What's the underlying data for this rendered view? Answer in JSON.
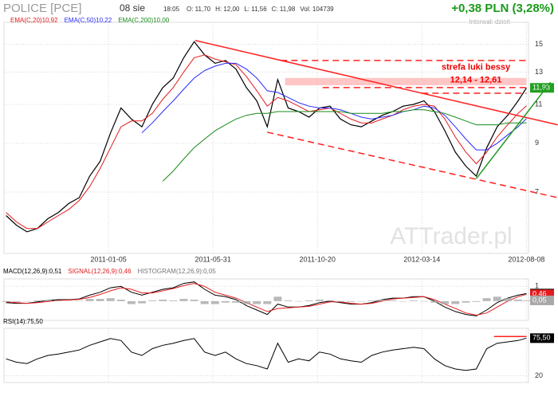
{
  "header": {
    "title": "POLICE [PCE]",
    "date": "08 sie",
    "time": "18:05",
    "fields": [
      "O: 11,70",
      "H: 12,00",
      "L: 11,56",
      "C: 11,98",
      "Vol: 104739"
    ],
    "change": "+0,38 PLN (3,28%)",
    "interval": "Interwał: dzień"
  },
  "watermark": "ATTrader.pl",
  "chart_data": [
    {
      "type": "line",
      "log_scale": true,
      "grid": true,
      "x": [
        0,
        10,
        20,
        30,
        40,
        50,
        60,
        70,
        80,
        90,
        100,
        110,
        120,
        130,
        140,
        150,
        160,
        170,
        180,
        190,
        200,
        210,
        220,
        230,
        240,
        250,
        260,
        270,
        280,
        290,
        300,
        310,
        320,
        330,
        340,
        350,
        360,
        370,
        380,
        390,
        400,
        410,
        420,
        430,
        440,
        450,
        460,
        470,
        480,
        490,
        498
      ],
      "xlim": [
        -2,
        500
      ],
      "xticks": [
        {
          "value": 98,
          "label": "2011-01-05"
        },
        {
          "value": 198,
          "label": "2011-05-31"
        },
        {
          "value": 298,
          "label": "2011-10-20"
        },
        {
          "value": 398,
          "label": "2012-03-14"
        },
        {
          "value": 498,
          "label": "2012-08-08"
        }
      ],
      "ylim": [
        5.1,
        16.8
      ],
      "yticks": [
        7,
        9,
        11,
        13,
        15
      ],
      "series": [
        {
          "color": "#000000",
          "values": [
            6.2,
            5.9,
            5.7,
            5.8,
            6.1,
            6.3,
            6.6,
            6.8,
            7.6,
            8.2,
            9.5,
            10.8,
            10.2,
            9.8,
            11.0,
            12.0,
            12.6,
            14.0,
            15.2,
            14.2,
            13.6,
            13.8,
            13.2,
            12.0,
            11.2,
            9.8,
            12.5,
            10.8,
            10.6,
            10.3,
            10.8,
            10.9,
            10.2,
            9.9,
            9.8,
            10.1,
            10.4,
            10.6,
            10.9,
            11.0,
            11.2,
            10.6,
            9.6,
            8.6,
            8.0,
            7.6,
            8.8,
            9.8,
            10.4,
            11.2,
            11.98
          ],
          "last_value_label": "11,98"
        },
        {
          "name": "EMA(C,20)",
          "legend_label": "10,92",
          "color": "#e41a1c",
          "values": [
            6.3,
            6.0,
            5.8,
            5.8,
            6.0,
            6.2,
            6.4,
            6.7,
            7.2,
            7.9,
            8.8,
            9.8,
            10.1,
            10.1,
            10.5,
            11.3,
            12.0,
            13.0,
            14.0,
            14.2,
            13.9,
            13.7,
            13.5,
            12.7,
            11.8,
            10.9,
            11.4,
            11.2,
            10.9,
            10.6,
            10.7,
            10.8,
            10.5,
            10.2,
            10.0,
            10.0,
            10.2,
            10.4,
            10.7,
            10.9,
            11.0,
            10.9,
            10.2,
            9.3,
            8.6,
            8.1,
            8.6,
            9.3,
            9.9,
            10.5,
            10.92
          ]
        },
        {
          "name": "EMA(C,50)",
          "legend_label": "10,22",
          "color": "#2a2aff",
          "values": [
            null,
            null,
            null,
            null,
            null,
            null,
            null,
            null,
            null,
            null,
            null,
            null,
            null,
            9.5,
            10.0,
            10.6,
            11.2,
            11.9,
            12.6,
            13.1,
            13.4,
            13.6,
            13.6,
            13.2,
            12.6,
            11.8,
            11.7,
            11.4,
            11.1,
            10.9,
            10.8,
            10.8,
            10.7,
            10.5,
            10.3,
            10.2,
            10.3,
            10.4,
            10.6,
            10.7,
            10.9,
            10.8,
            10.4,
            9.8,
            9.2,
            8.7,
            8.7,
            9.0,
            9.4,
            9.8,
            10.22
          ]
        },
        {
          "name": "EMA(C,200)",
          "legend_label": "10,00",
          "color": "#1a8a1a",
          "values": [
            null,
            null,
            null,
            null,
            null,
            null,
            null,
            null,
            null,
            null,
            null,
            null,
            null,
            null,
            null,
            7.4,
            7.8,
            8.3,
            8.8,
            9.2,
            9.6,
            9.9,
            10.2,
            10.4,
            10.5,
            10.5,
            10.6,
            10.6,
            10.6,
            10.6,
            10.6,
            10.6,
            10.6,
            10.5,
            10.5,
            10.5,
            10.5,
            10.6,
            10.6,
            10.7,
            10.7,
            10.6,
            10.5,
            10.3,
            10.1,
            9.9,
            9.9,
            9.9,
            10.0,
            10.0,
            10.0
          ]
        }
      ],
      "annotation_lines": [
        {
          "x": [
            181,
            528
          ],
          "y": [
            15.3,
            9.9
          ],
          "color": "#ff2020",
          "dashed": false
        },
        {
          "x": [
            250,
            528
          ],
          "y": [
            9.53,
            6.8
          ],
          "color": "#ff2020",
          "dashed": true
        },
        {
          "x": [
            450,
            521
          ],
          "y": [
            7.5,
            12.33
          ],
          "color": "#229922",
          "dashed": false
        },
        {
          "x": [
            263,
            498
          ],
          "y": [
            13.8,
            13.8
          ],
          "color": "#ff2020",
          "dashed": true
        },
        {
          "x": [
            303,
            498
          ],
          "y": [
            12.0,
            12.0
          ],
          "color": "#ff2020",
          "dashed": true
        },
        {
          "x": [
            398,
            498
          ],
          "y": [
            11.65,
            11.65
          ],
          "color": "#ff2020",
          "dashed": true
        }
      ],
      "zone": {
        "x": [
          267,
          498
        ],
        "y": [
          12.14,
          12.61
        ],
        "label": "strefa luki bessy",
        "range_label": "12,14 - 12,61"
      }
    },
    {
      "type": "line",
      "grid": true,
      "ylim": [
        -1.3,
        1.5
      ],
      "yticks": [
        1
      ],
      "x": [
        0,
        10,
        20,
        30,
        40,
        50,
        60,
        70,
        80,
        90,
        100,
        110,
        120,
        130,
        140,
        150,
        160,
        170,
        180,
        190,
        200,
        210,
        220,
        230,
        240,
        250,
        260,
        270,
        280,
        290,
        300,
        310,
        320,
        330,
        340,
        350,
        360,
        370,
        380,
        390,
        400,
        410,
        420,
        430,
        440,
        450,
        460,
        470,
        480,
        490,
        498
      ],
      "xlim": [
        -2,
        500
      ],
      "series": [
        {
          "name": "MACD(12,26,9):",
          "legend_label": "0,51",
          "color": "#000000",
          "values": [
            -0.1,
            -0.15,
            -0.15,
            -0.05,
            0.05,
            0.1,
            0.1,
            0.15,
            0.4,
            0.6,
            0.9,
            1.0,
            0.6,
            0.4,
            0.6,
            0.8,
            0.9,
            1.2,
            1.3,
            0.8,
            0.4,
            0.3,
            0.1,
            -0.3,
            -0.6,
            -0.9,
            -0.2,
            -0.4,
            -0.4,
            -0.3,
            -0.1,
            0.0,
            -0.1,
            -0.2,
            -0.2,
            -0.1,
            0.1,
            0.2,
            0.2,
            0.3,
            0.3,
            0.0,
            -0.4,
            -0.7,
            -0.9,
            -1.0,
            -0.6,
            -0.1,
            0.2,
            0.4,
            0.51
          ]
        },
        {
          "name": "SIGNAL(12,26,9):",
          "legend_label": "0,46",
          "color": "#e41a1c",
          "values": [
            -0.05,
            -0.1,
            -0.15,
            -0.1,
            -0.03,
            0.05,
            0.08,
            0.12,
            0.25,
            0.45,
            0.7,
            0.9,
            0.8,
            0.55,
            0.55,
            0.7,
            0.85,
            1.05,
            1.2,
            1.0,
            0.6,
            0.4,
            0.2,
            -0.1,
            -0.4,
            -0.7,
            -0.5,
            -0.45,
            -0.4,
            -0.35,
            -0.2,
            -0.05,
            -0.05,
            -0.15,
            -0.2,
            -0.15,
            0.0,
            0.15,
            0.2,
            0.25,
            0.3,
            0.1,
            -0.2,
            -0.5,
            -0.8,
            -0.95,
            -0.8,
            -0.4,
            0.0,
            0.3,
            0.46
          ]
        },
        {
          "name": "HISTOGRAM(12,26,9):",
          "legend_label": "0,05",
          "color": "#a8a8a8",
          "style": "bar",
          "values": [
            -0.05,
            -0.05,
            0,
            0.05,
            0.08,
            0.05,
            0.02,
            0.03,
            0.15,
            0.15,
            0.2,
            0.1,
            -0.2,
            -0.15,
            0.05,
            0.1,
            0.05,
            0.15,
            0.1,
            -0.2,
            -0.2,
            -0.1,
            -0.1,
            -0.2,
            -0.2,
            -0.2,
            0.3,
            0.05,
            0,
            0.05,
            0.1,
            0.05,
            -0.05,
            -0.05,
            0,
            0.05,
            0.1,
            0.05,
            0,
            0.05,
            0,
            -0.1,
            -0.2,
            -0.2,
            -0.1,
            -0.05,
            0.2,
            0.3,
            0.2,
            0.1,
            0.05
          ]
        }
      ]
    },
    {
      "type": "line",
      "grid": true,
      "ylim": [
        10,
        90
      ],
      "yticks": [
        20
      ],
      "x": [
        0,
        10,
        20,
        30,
        40,
        50,
        60,
        70,
        80,
        90,
        100,
        110,
        120,
        130,
        140,
        150,
        160,
        170,
        180,
        190,
        200,
        210,
        220,
        230,
        240,
        250,
        260,
        270,
        280,
        290,
        300,
        310,
        320,
        330,
        340,
        350,
        360,
        370,
        380,
        390,
        400,
        410,
        420,
        430,
        440,
        450,
        460,
        470,
        480,
        490,
        498
      ],
      "xlim": [
        -2,
        500
      ],
      "series": [
        {
          "name": "RSI(14):",
          "legend_label": "75,50",
          "color": "#000000",
          "values": [
            45,
            40,
            38,
            45,
            50,
            52,
            55,
            58,
            65,
            70,
            75,
            72,
            55,
            50,
            60,
            65,
            68,
            72,
            75,
            55,
            50,
            55,
            45,
            38,
            35,
            30,
            68,
            40,
            45,
            42,
            55,
            52,
            45,
            42,
            40,
            50,
            55,
            58,
            60,
            62,
            60,
            45,
            35,
            30,
            28,
            30,
            60,
            68,
            70,
            72,
            75.5
          ]
        }
      ],
      "annotation_lines": [
        {
          "x": [
            467,
            498
          ],
          "y": [
            78,
            78
          ],
          "color": "#ff2020",
          "dashed": false
        }
      ]
    }
  ]
}
